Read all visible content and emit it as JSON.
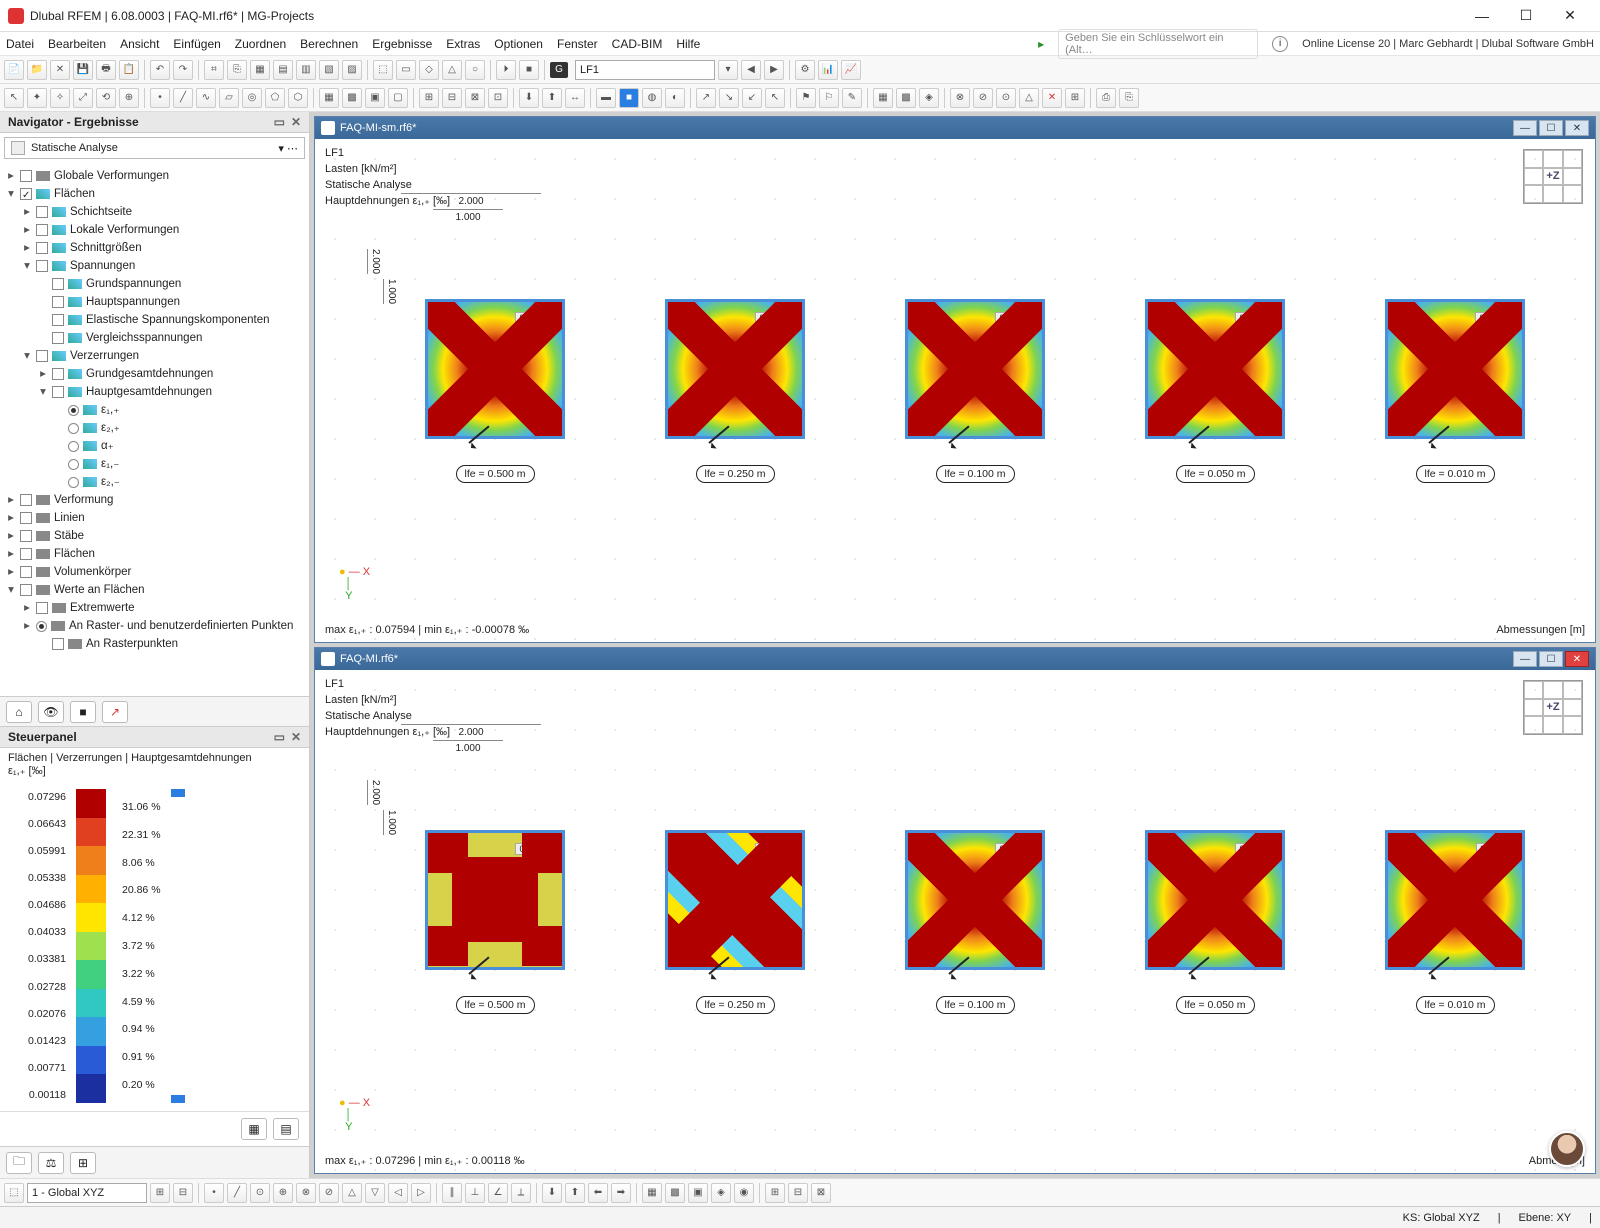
{
  "title": "Dlubal RFEM | 6.08.0003 | FAQ-MI.rf6* | MG-Projects",
  "menu": [
    "Datei",
    "Bearbeiten",
    "Ansicht",
    "Einfügen",
    "Zuordnen",
    "Berechnen",
    "Ergebnisse",
    "Extras",
    "Optionen",
    "Fenster",
    "CAD-BIM",
    "Hilfe"
  ],
  "searchHint": "Geben Sie ein Schlüsselwort ein (Alt…",
  "license": "Online License 20 | Marc Gebhardt | Dlubal Software GmbH",
  "lfSelector": "LF1",
  "navigator": {
    "title": "Navigator - Ergebnisse",
    "combo": "Statische Analyse",
    "nodes": [
      {
        "lvl": 0,
        "tw": "▸",
        "cb": 0,
        "ico": "def",
        "label": "Globale Verformungen"
      },
      {
        "lvl": 0,
        "tw": "▾",
        "cb": 1,
        "ico": "surf",
        "label": "Flächen"
      },
      {
        "lvl": 1,
        "tw": "▸",
        "cb": 0,
        "ico": "surf",
        "label": "Schichtseite"
      },
      {
        "lvl": 1,
        "tw": "▸",
        "cb": 0,
        "ico": "surf",
        "label": "Lokale Verformungen"
      },
      {
        "lvl": 1,
        "tw": "▸",
        "cb": 0,
        "ico": "surf",
        "label": "Schnittgrößen"
      },
      {
        "lvl": 1,
        "tw": "▾",
        "cb": 0,
        "ico": "surf",
        "label": "Spannungen"
      },
      {
        "lvl": 2,
        "tw": "",
        "cb": 0,
        "ico": "surf",
        "label": "Grundspannungen"
      },
      {
        "lvl": 2,
        "tw": "",
        "cb": 0,
        "ico": "surf",
        "label": "Hauptspannungen"
      },
      {
        "lvl": 2,
        "tw": "",
        "cb": 0,
        "ico": "surf",
        "label": "Elastische Spannungskomponenten"
      },
      {
        "lvl": 2,
        "tw": "",
        "cb": 0,
        "ico": "surf",
        "label": "Vergleichsspannungen"
      },
      {
        "lvl": 1,
        "tw": "▾",
        "cb": 0,
        "ico": "surf",
        "label": "Verzerrungen"
      },
      {
        "lvl": 2,
        "tw": "▸",
        "cb": 0,
        "ico": "surf",
        "label": "Grundgesamtdehnungen"
      },
      {
        "lvl": 2,
        "tw": "▾",
        "cb": 0,
        "ico": "surf",
        "label": "Hauptgesamtdehnungen"
      },
      {
        "lvl": 3,
        "rb": 1,
        "ico": "surf",
        "label": "ε₁,₊"
      },
      {
        "lvl": 3,
        "rb": 0,
        "ico": "surf",
        "label": "ε₂,₊"
      },
      {
        "lvl": 3,
        "rb": 0,
        "ico": "surf",
        "label": "α₊"
      },
      {
        "lvl": 3,
        "rb": 0,
        "ico": "surf",
        "label": "ε₁,₋"
      },
      {
        "lvl": 3,
        "rb": 0,
        "ico": "surf",
        "label": "ε₂,₋"
      },
      {
        "lvl": 0,
        "tw": "▸",
        "cb": 0,
        "ico": "def",
        "label": "Verformung"
      },
      {
        "lvl": 0,
        "tw": "▸",
        "cb": 0,
        "ico": "def",
        "label": "Linien"
      },
      {
        "lvl": 0,
        "tw": "▸",
        "cb": 0,
        "ico": "def",
        "label": "Stäbe"
      },
      {
        "lvl": 0,
        "tw": "▸",
        "cb": 0,
        "ico": "def",
        "label": "Flächen"
      },
      {
        "lvl": 0,
        "tw": "▸",
        "cb": 0,
        "ico": "def",
        "label": "Volumenkörper"
      },
      {
        "lvl": 0,
        "tw": "▾",
        "cb": 0,
        "ico": "def",
        "label": "Werte an Flächen"
      },
      {
        "lvl": 1,
        "tw": "▸",
        "cb": 0,
        "ico": "def",
        "label": "Extremwerte"
      },
      {
        "lvl": 1,
        "tw": "▸",
        "rb": 1,
        "ico": "def",
        "label": "An Raster- und benutzerdefinierten Punkten"
      },
      {
        "lvl": 2,
        "tw": "",
        "cb": 0,
        "ico": "def",
        "label": "An Rasterpunkten"
      }
    ]
  },
  "steuer": {
    "title": "Steuerpanel",
    "desc1": "Flächen | Verzerrungen | Hauptgesamtdehnungen",
    "desc2": "ε₁,₊ [‰]",
    "values": [
      "0.07296",
      "0.06643",
      "0.05991",
      "0.05338",
      "0.04686",
      "0.04033",
      "0.03381",
      "0.02728",
      "0.02076",
      "0.01423",
      "0.00771",
      "0.00118"
    ],
    "colors": [
      "#b00000",
      "#e04020",
      "#ef7f1a",
      "#ffb000",
      "#ffe600",
      "#9fe04f",
      "#40d080",
      "#30c8c0",
      "#35a0e0",
      "#2a5bd7",
      "#1c2fa0"
    ],
    "percents": [
      "31.06 %",
      "22.31 %",
      "8.06 %",
      "20.86 %",
      "4.12 %",
      "3.72 %",
      "3.22 %",
      "4.59 %",
      "0.94 %",
      "0.91 %",
      "0.20 %"
    ]
  },
  "doc1": {
    "file": "FAQ-MI-sm.rf6*",
    "info": [
      "LF1",
      "Lasten [kN/m²]",
      "Statische Analyse",
      "Hauptdehnungen ε₁,₊ [‰]"
    ],
    "dims": {
      "outer": "2.000",
      "inner": "1.000",
      "v": "2.000",
      "vi": "1.000"
    },
    "plates": [
      {
        "val": "0.07594",
        "lfe": "lfe = 0.500 m"
      },
      {
        "val": "0.06985",
        "lfe": "lfe = 0.250 m"
      },
      {
        "val": "0.07195",
        "lfe": "lfe = 0.100 m"
      },
      {
        "val": "0.07204",
        "lfe": "lfe = 0.050 m"
      },
      {
        "val": "0.07212",
        "lfe": "lfe = 0.010 m"
      }
    ],
    "max": "max ε₁,₊ : 0.07594 | min ε₁,₊ : -0.00078 ‰",
    "abm": "Abmessungen [m]"
  },
  "doc2": {
    "file": "FAQ-MI.rf6*",
    "info": [
      "LF1",
      "Lasten [kN/m²]",
      "Statische Analyse",
      "Hauptdehnungen ε₁,₊ [‰]"
    ],
    "plates": [
      {
        "val": "0.05892",
        "lfe": "lfe = 0.500 m"
      },
      {
        "val": "0.06800",
        "lfe": "lfe = 0.250 m"
      },
      {
        "val": "0.07122",
        "lfe": "lfe = 0.100 m"
      },
      {
        "val": "0.07185",
        "lfe": "lfe = 0.050 m"
      },
      {
        "val": "0.07211",
        "lfe": "lfe = 0.010 m"
      }
    ],
    "max": "max ε₁,₊ : 0.07296 | min ε₁,₊ : 0.00118 ‰",
    "abm": "Abme            n [m]"
  },
  "status": {
    "cs": "1 - Global XYZ",
    "ks": "KS: Global XYZ",
    "ebene": "Ebene: XY"
  },
  "z": "+Z"
}
